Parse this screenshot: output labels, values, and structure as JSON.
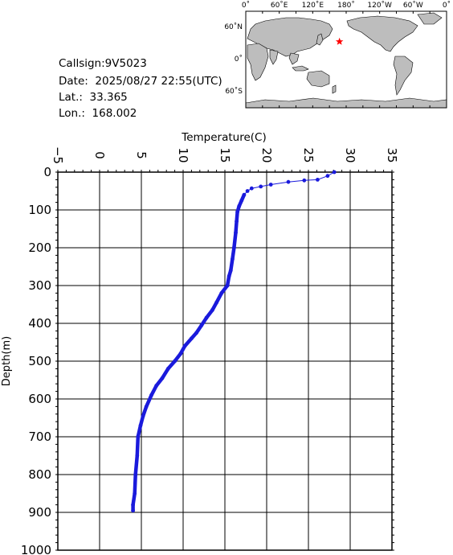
{
  "header": {
    "callsign": "Callsign:9V5023",
    "date": "Date:  2025/08/27 22:55(UTC)",
    "lat": "Lat.:  33.365",
    "lon": "Lon.:  168.002"
  },
  "map": {
    "lon_labels": [
      "0˚",
      "60˚E",
      "120˚E",
      "180˚",
      "120˚W",
      "60˚W",
      "0˚"
    ],
    "lat_labels": [
      "60˚N",
      "0˚",
      "60˚S"
    ],
    "marker": {
      "lat": 33.365,
      "lon": 168.002,
      "color": "#ff0000"
    },
    "land_color": "#bdbdbd",
    "ocean_color": "#ffffff"
  },
  "chart_data": {
    "type": "line",
    "title": "",
    "xlabel": "Temperature(C)",
    "ylabel": "Depth(m)",
    "xlim": [
      -5,
      35
    ],
    "ylim": [
      1000,
      0
    ],
    "x_ticks": [
      -5,
      0,
      5,
      10,
      15,
      20,
      25,
      30,
      35
    ],
    "y_ticks": [
      0,
      100,
      200,
      300,
      400,
      500,
      600,
      700,
      800,
      900,
      1000
    ],
    "grid": true,
    "x_axis_position": "top",
    "series": [
      {
        "color": "#1a1adc",
        "points": [
          [
            28.1,
            0
          ],
          [
            27.3,
            10
          ],
          [
            26.1,
            20
          ],
          [
            24.5,
            22
          ],
          [
            22.6,
            26
          ],
          [
            20.5,
            33
          ],
          [
            19.3,
            38
          ],
          [
            18.2,
            43
          ],
          [
            17.7,
            50
          ],
          [
            17.3,
            60
          ],
          [
            17.0,
            75
          ],
          [
            16.7,
            90
          ],
          [
            16.5,
            105
          ],
          [
            16.4,
            130
          ],
          [
            16.3,
            160
          ],
          [
            16.1,
            200
          ],
          [
            15.9,
            230
          ],
          [
            15.7,
            260
          ],
          [
            15.5,
            275
          ],
          [
            15.3,
            300
          ],
          [
            14.6,
            320
          ],
          [
            14.0,
            345
          ],
          [
            13.5,
            365
          ],
          [
            12.8,
            385
          ],
          [
            12.2,
            405
          ],
          [
            11.6,
            425
          ],
          [
            11.0,
            440
          ],
          [
            10.2,
            460
          ],
          [
            9.7,
            480
          ],
          [
            9.0,
            500
          ],
          [
            8.2,
            520
          ],
          [
            7.5,
            545
          ],
          [
            6.8,
            565
          ],
          [
            6.2,
            590
          ],
          [
            5.6,
            620
          ],
          [
            5.2,
            645
          ],
          [
            4.9,
            670
          ],
          [
            4.6,
            700
          ],
          [
            4.5,
            750
          ],
          [
            4.3,
            800
          ],
          [
            4.2,
            850
          ],
          [
            4.0,
            880
          ],
          [
            4.0,
            895
          ]
        ]
      }
    ]
  }
}
